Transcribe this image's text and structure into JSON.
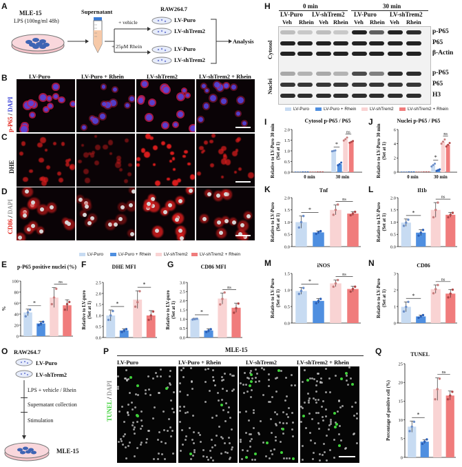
{
  "panels": {
    "A": "A",
    "B": "B",
    "C": "C",
    "D": "D",
    "E": "E",
    "F": "F",
    "G": "G",
    "H": "H",
    "I": "I",
    "J": "J",
    "K": "K",
    "L": "L",
    "M": "M",
    "N": "N",
    "O": "O",
    "P": "P",
    "Q": "Q"
  },
  "panelA": {
    "cell_line": "MLE-15",
    "treatment": "LPS (100ng/ml 48h)",
    "supernatant": "Supernatant",
    "raw": "RAW264.7",
    "vehicle": "+ vehicle",
    "rhein": "+ 25μM Rhein",
    "lv_puro": "LV-Puro",
    "lv_shtrem2": "LV-shTrem2",
    "analysis": "Analysis"
  },
  "micro_cols": [
    "LV-Puro",
    "LV-Puro + Rhein",
    "LV-shTrem2",
    "LV-shTrem2 + Rhein"
  ],
  "rowB": {
    "red": "p-P65",
    "sep": " / ",
    "blue": "DAPI"
  },
  "rowC": {
    "label": "DHE"
  },
  "rowD": {
    "red": "CD86",
    "sep": " / ",
    "gray": "DAPI"
  },
  "legend": [
    "LV-Puro",
    "LV-Puro + Rhein",
    "LV-shTrem2",
    "LV-shTrem2 + Rhein"
  ],
  "colors": {
    "lv_puro": "#c7dbf2",
    "lv_puro_rhein": "#4f8fe0",
    "lv_shtrem2": "#f9d3d3",
    "lv_shtrem2_rhein": "#f07c7c",
    "dapi": "#3d45d8",
    "red": "#e2231a",
    "green": "#3fd23a"
  },
  "blot": {
    "t0": "0 min",
    "t30": "30 min",
    "lv_puro": "LV-Puro",
    "lv_shtrem2": "LV-shTrem2",
    "veh": "Veh",
    "rhein": "Rhein",
    "cytosol": "Cytosol",
    "nuclei": "Nuclei",
    "bands": [
      "p-P65",
      "P65",
      "β-Actin",
      "p-P65",
      "P65",
      "H3"
    ]
  },
  "sig": {
    "star": "*",
    "ns": "ns"
  },
  "panelO": {
    "raw": "RAW264.7",
    "lv_puro": "LV-Puro",
    "lv_shtrem2": "LV-shTrem2",
    "step1": "LPS + vehicle / Rhein",
    "step2": "Supernatant collection",
    "step3": "Stimulation",
    "cell": "MLE-15"
  },
  "panelP": {
    "title": "MLE-15",
    "cols": [
      "LV-Puro",
      "LV-Puro + Rhein",
      "LV-shTrem2",
      "LV-shTrem2 + Rhein"
    ],
    "ylabel_green": "TUNEL",
    "ylabel_sep": " / ",
    "ylabel_gray": "DAPI"
  },
  "chart_data": [
    {
      "id": "E",
      "type": "bar",
      "title": "p-P65 positive nuclei (%)",
      "ylabel": "%",
      "ylim": [
        0,
        100
      ],
      "yticks": [
        0,
        20,
        40,
        60,
        80,
        100
      ],
      "categories": [
        "LV-Puro",
        "LV-Puro + Rhein",
        "LV-shTrem2",
        "LV-shTrem2 + Rhein"
      ],
      "values": [
        43,
        23,
        70,
        56
      ],
      "errors": [
        6,
        4,
        18,
        10
      ],
      "points": [
        [
          36,
          43,
          48
        ],
        [
          20,
          23,
          26
        ],
        [
          58,
          70,
          86
        ],
        [
          48,
          58,
          62
        ]
      ],
      "sig": [
        {
          "a": 0,
          "b": 1,
          "label": "*"
        },
        {
          "a": 2,
          "b": 3,
          "label": "ns"
        }
      ]
    },
    {
      "id": "F",
      "type": "bar",
      "title": "DHE MFI",
      "ylabel": "Relative to LV-puro\n(Set at 1)",
      "ylim": [
        0,
        2.5
      ],
      "yticks": [
        0,
        0.5,
        1.0,
        1.5,
        2.0,
        2.5
      ],
      "categories": [
        "LV-Puro",
        "LV-Puro + Rhein",
        "LV-shTrem2",
        "LV-shTrem2 + Rhein"
      ],
      "values": [
        1.0,
        0.32,
        1.72,
        1.0
      ],
      "errors": [
        0.25,
        0.08,
        0.4,
        0.22
      ],
      "points": [
        [
          0.8,
          1.0,
          1.2
        ],
        [
          0.25,
          0.32,
          0.38
        ],
        [
          1.4,
          1.6,
          2.1
        ],
        [
          0.8,
          1.0,
          1.18
        ]
      ],
      "sig": [
        {
          "a": 0,
          "b": 1,
          "label": "*"
        },
        {
          "a": 2,
          "b": 3,
          "label": "*"
        }
      ]
    },
    {
      "id": "G",
      "type": "bar",
      "title": "CD86 MFI",
      "ylabel": "Relative to LV-puro\n(Set at 1)",
      "ylim": [
        0,
        3.0
      ],
      "yticks": [
        0,
        0.5,
        1.0,
        1.5,
        2.0,
        2.5,
        3.0
      ],
      "categories": [
        "LV-Puro",
        "LV-Puro + Rhein",
        "LV-shTrem2",
        "LV-shTrem2 + Rhein"
      ],
      "values": [
        1.0,
        0.38,
        2.12,
        1.62
      ],
      "errors": [
        0.05,
        0.1,
        0.3,
        0.25
      ],
      "points": [
        [
          0.98,
          1.0,
          1.02
        ],
        [
          0.3,
          0.38,
          0.45
        ],
        [
          1.8,
          2.1,
          2.45
        ],
        [
          1.35,
          1.6,
          1.85
        ]
      ],
      "sig": [
        {
          "a": 0,
          "b": 1,
          "label": "*"
        },
        {
          "a": 2,
          "b": 3,
          "label": "ns"
        }
      ]
    },
    {
      "id": "I",
      "type": "line",
      "title": "Cytosol p-P65 / P65",
      "ylabel": "Relative to LV-Puro 30 min\n(Set at 1)",
      "ylim": [
        0,
        2.0
      ],
      "yticks": [
        0,
        0.5,
        1.0,
        1.5,
        2.0
      ],
      "x": [
        "0 min",
        "30 min"
      ],
      "zero_markers": true,
      "values30": [
        1.0,
        0.38,
        1.55,
        1.42
      ],
      "points30": [
        [
          0.98,
          1.0,
          1.02
        ],
        [
          0.32,
          0.38,
          0.45
        ],
        [
          1.48,
          1.55,
          1.62
        ],
        [
          1.38,
          1.42,
          1.46
        ]
      ],
      "sig": [
        {
          "a": 0,
          "b": 1,
          "label": "*"
        },
        {
          "a": 2,
          "b": 3,
          "label": "ns"
        }
      ]
    },
    {
      "id": "J",
      "type": "line",
      "title": "Nuclei p-P65 / P65",
      "ylabel": "Relative to LV-Puro 30 min\n(Set at 1)",
      "ylim": [
        0,
        6
      ],
      "yticks": [
        0,
        2,
        4,
        6
      ],
      "x": [
        "0 min",
        "30 min"
      ],
      "zero_markers": true,
      "values30": [
        1.0,
        0.3,
        4.3,
        3.85
      ],
      "points30": [
        [
          0.8,
          1.0,
          1.2
        ],
        [
          0.2,
          0.3,
          0.4
        ],
        [
          4.0,
          4.3,
          4.6
        ],
        [
          3.6,
          3.85,
          4.1
        ]
      ],
      "sig": [
        {
          "a": 0,
          "b": 1,
          "label": "*"
        },
        {
          "a": 2,
          "b": 3,
          "label": "ns"
        }
      ]
    },
    {
      "id": "K",
      "type": "bar",
      "title": "Tnf",
      "ylabel": "Relative to LV-Puro\n(Set at 1)",
      "ylim": [
        0,
        2.0
      ],
      "yticks": [
        0,
        0.5,
        1.0,
        1.5,
        2.0
      ],
      "categories": [
        "LV-Puro",
        "LV-Puro + Rhein",
        "LV-shTrem2",
        "LV-shTrem2 + Rhein"
      ],
      "values": [
        1.0,
        0.58,
        1.5,
        1.35
      ],
      "errors": [
        0.25,
        0.06,
        0.2,
        0.08
      ],
      "points": [
        [
          0.78,
          1.0,
          1.25
        ],
        [
          0.52,
          0.58,
          0.63
        ],
        [
          1.3,
          1.5,
          1.72
        ],
        [
          1.28,
          1.35,
          1.42
        ]
      ],
      "sig": [
        {
          "a": 0,
          "b": 1,
          "label": "*"
        },
        {
          "a": 2,
          "b": 3,
          "label": "ns"
        }
      ]
    },
    {
      "id": "L",
      "type": "bar",
      "title": "Il1b",
      "ylabel": "Relative to LV-Puro\n(Set at 1)",
      "ylim": [
        0,
        2.0
      ],
      "yticks": [
        0,
        0.5,
        1.0,
        1.5,
        2.0
      ],
      "categories": [
        "LV-Puro",
        "LV-Puro + Rhein",
        "LV-shTrem2",
        "LV-shTrem2 + Rhein"
      ],
      "values": [
        0.98,
        0.57,
        1.5,
        1.3
      ],
      "errors": [
        0.15,
        0.12,
        0.3,
        0.1
      ],
      "points": [
        [
          0.85,
          0.98,
          1.1
        ],
        [
          0.45,
          0.57,
          0.68
        ],
        [
          1.2,
          1.5,
          1.8
        ],
        [
          1.2,
          1.3,
          1.38
        ]
      ],
      "sig": [
        {
          "a": 0,
          "b": 1,
          "label": "*"
        },
        {
          "a": 2,
          "b": 3,
          "label": "ns"
        }
      ]
    },
    {
      "id": "M",
      "type": "bar",
      "title": "iNOS",
      "ylabel": "Relative to LV-Puro\n(Set at 1)",
      "ylim": [
        0,
        1.5
      ],
      "yticks": [
        0,
        0.5,
        1.0,
        1.5
      ],
      "categories": [
        "LV-Puro",
        "LV-Puro + Rhein",
        "LV-shTrem2",
        "LV-shTrem2 + Rhein"
      ],
      "values": [
        0.97,
        0.67,
        1.2,
        1.03
      ],
      "errors": [
        0.1,
        0.07,
        0.1,
        0.08
      ],
      "points": [
        [
          0.88,
          0.97,
          1.06
        ],
        [
          0.6,
          0.67,
          0.73
        ],
        [
          1.1,
          1.2,
          1.3
        ],
        [
          0.95,
          1.03,
          1.1
        ]
      ],
      "sig": [
        {
          "a": 0,
          "b": 1,
          "label": "*"
        },
        {
          "a": 2,
          "b": 3,
          "label": "ns"
        }
      ]
    },
    {
      "id": "N",
      "type": "bar",
      "title": "CD86",
      "ylabel": "Relative to LV-Puro\n(Set at 1)",
      "ylim": [
        0,
        3
      ],
      "yticks": [
        0,
        1,
        2,
        3
      ],
      "categories": [
        "LV-Puro",
        "LV-Puro + Rhein",
        "LV-shTrem2",
        "LV-shTrem2 + Rhein"
      ],
      "values": [
        0.98,
        0.4,
        2.05,
        1.78
      ],
      "errors": [
        0.3,
        0.08,
        0.25,
        0.25
      ],
      "points": [
        [
          0.7,
          0.98,
          1.28
        ],
        [
          0.32,
          0.4,
          0.48
        ],
        [
          1.8,
          2.05,
          2.3
        ],
        [
          1.55,
          1.78,
          2.02
        ]
      ],
      "sig": [
        {
          "a": 0,
          "b": 1,
          "label": "*"
        },
        {
          "a": 2,
          "b": 3,
          "label": "ns"
        }
      ]
    },
    {
      "id": "Q",
      "type": "bar",
      "title": "TUNEL",
      "ylabel": "Percentage of positive cell (%)",
      "ylim": [
        0,
        25
      ],
      "yticks": [
        0,
        5,
        10,
        15,
        20,
        25
      ],
      "categories": [
        "LV-Puro",
        "LV-Puro + Rhein",
        "LV-shTrem2",
        "LV-shTrem2 + Rhein"
      ],
      "values": [
        8.2,
        4.2,
        18.2,
        16.5
      ],
      "errors": [
        1.5,
        0.5,
        3,
        1.2
      ],
      "points": [
        [
          7,
          8.2,
          9.5
        ],
        [
          3.6,
          4.2,
          4.8
        ],
        [
          15.5,
          18.2,
          21
        ],
        [
          15.5,
          16.5,
          17.5
        ]
      ],
      "sig": [
        {
          "a": 0,
          "b": 1,
          "label": "*"
        },
        {
          "a": 2,
          "b": 3,
          "label": "ns"
        }
      ]
    }
  ]
}
